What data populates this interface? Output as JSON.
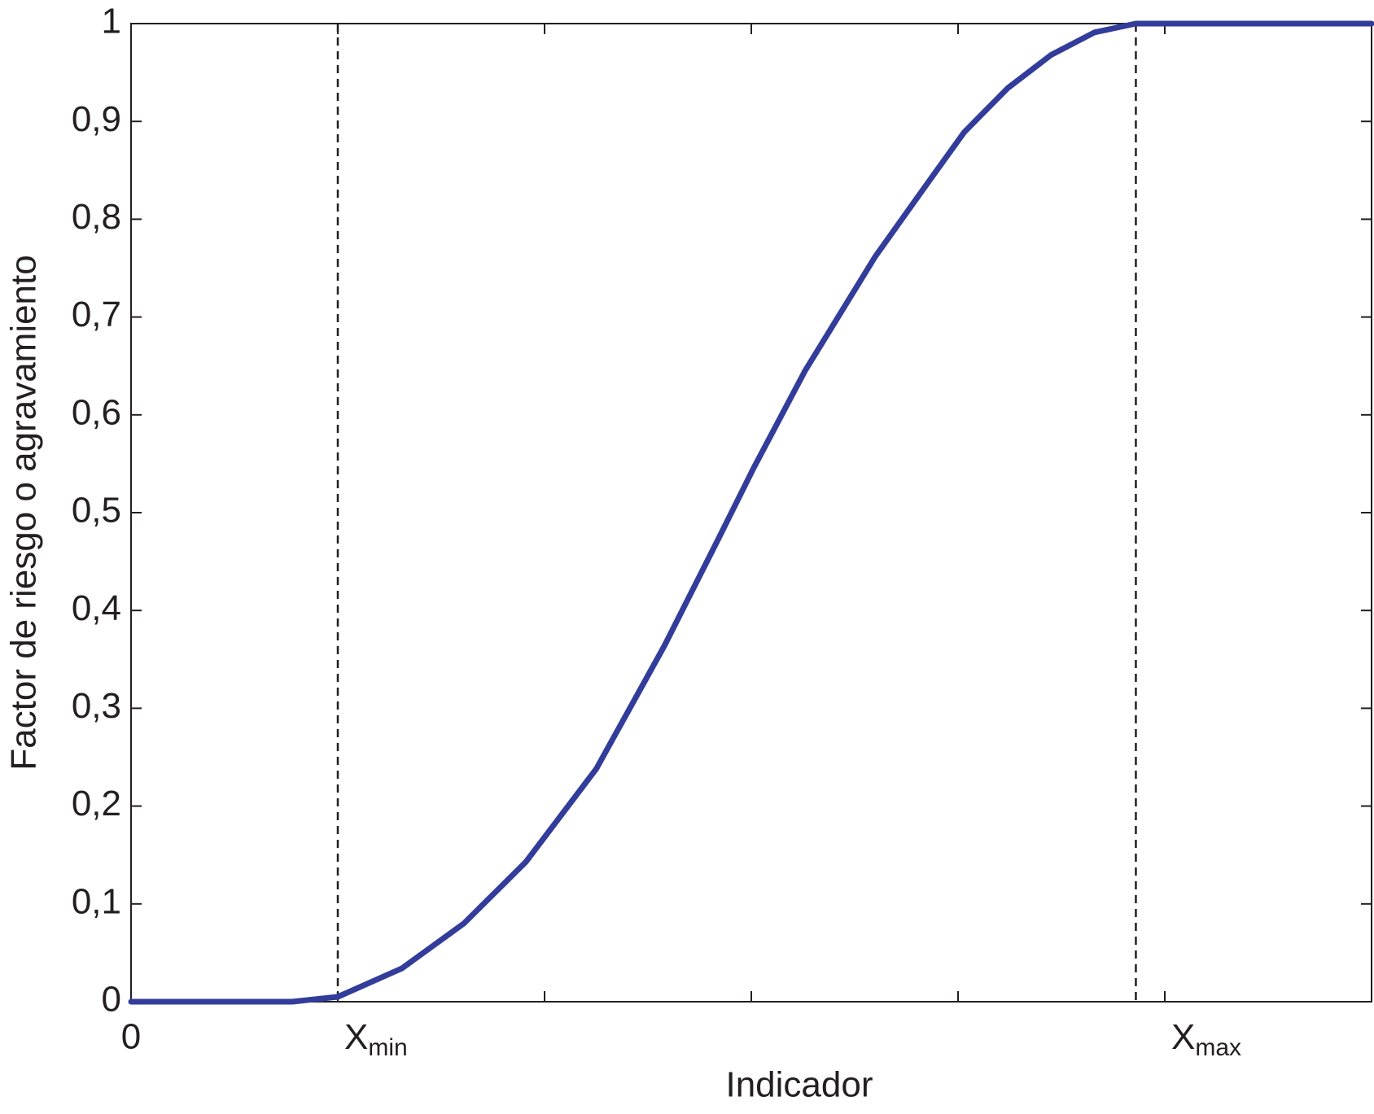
{
  "chart_data": {
    "type": "line",
    "xlabel": "Indicador",
    "ylabel": "Factor de riesgo o agravamiento",
    "x": [
      0,
      0.78,
      1.0,
      1.31,
      1.61,
      1.91,
      2.25,
      2.58,
      2.84,
      3.01,
      3.26,
      3.6,
      3.86,
      4.03,
      4.24,
      4.45,
      4.66,
      4.86,
      6.0
    ],
    "series": [
      {
        "color": "#323c9b",
        "values": [
          0,
          0,
          0.005,
          0.034,
          0.08,
          0.143,
          0.238,
          0.364,
          0.473,
          0.545,
          0.645,
          0.762,
          0.839,
          0.889,
          0.934,
          0.968,
          0.991,
          1,
          1
        ]
      }
    ],
    "vlines": [
      1.0,
      4.86
    ],
    "xlim": [
      0,
      6
    ],
    "xticks": [
      0,
      {
        "value": 1,
        "label": "X",
        "label_sub": "min"
      },
      {
        "value": 2,
        "label": null
      },
      {
        "value": 3,
        "label": null
      },
      {
        "value": 4,
        "label": null
      },
      {
        "value": 5,
        "label": "X",
        "label_sub": "max"
      }
    ],
    "ylim": [
      0,
      1
    ],
    "yticks": [
      0,
      {
        "value": 0.1,
        "label": "0,1"
      },
      {
        "value": 0.2,
        "label": "0,2"
      },
      {
        "value": 0.3,
        "label": "0,3"
      },
      {
        "value": 0.4,
        "label": "0,4"
      },
      {
        "value": 0.5,
        "label": "0,5"
      },
      {
        "value": 0.6,
        "label": "0,6"
      },
      {
        "value": 0.7,
        "label": "0,7"
      },
      {
        "value": 0.8,
        "label": "0,8"
      },
      {
        "value": 0.9,
        "label": "0,9"
      },
      1
    ]
  }
}
